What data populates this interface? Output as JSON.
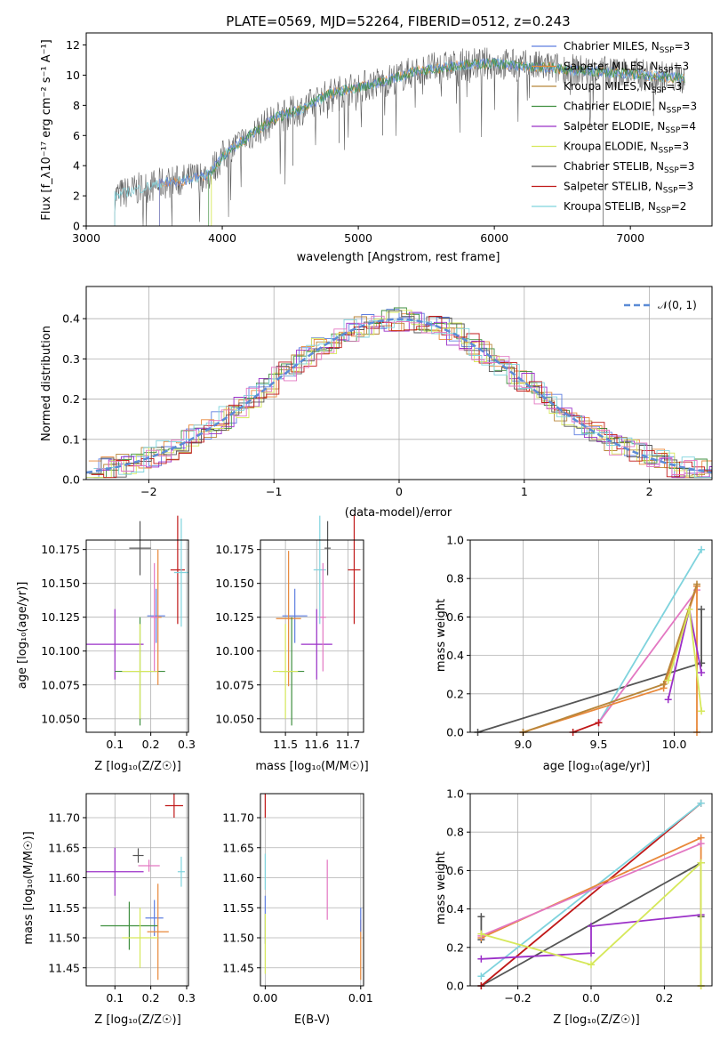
{
  "title": "PLATE=0569, MJD=52264, FIBERID=0512, z=0.243",
  "colors": {
    "chabrier_miles": "#5f7fe0",
    "salpeter_miles": "#e8883a",
    "kroupa_miles": "#b8863a",
    "chabrier_elodie": "#3f8f3f",
    "salpeter_elodie": "#9b30c8",
    "kroupa_elodie": "#d6e85a",
    "chabrier_stelib": "#555555",
    "salpeter_stelib": "#c01818",
    "kroupa_stelib": "#7fd3dd",
    "pink": "#e377c2",
    "gauss": "#5b8bd6",
    "grid": "#b0b0b0"
  },
  "panel_spectrum": {
    "ylabel": "Flux [f_λ10⁻¹⁷ erg cm⁻² s⁻¹ A⁻¹]",
    "xlabel": "wavelength [Angstrom, rest frame]",
    "legend": [
      {
        "label": "Chabrier MILES, N",
        "sub": "SSP",
        "tail": "=3",
        "color_key": "chabrier_miles"
      },
      {
        "label": "Salpeter MILES, N",
        "sub": "SSP",
        "tail": "=3",
        "color_key": "salpeter_miles"
      },
      {
        "label": "Kroupa MILES, N",
        "sub": "SSP",
        "tail": "=3",
        "color_key": "kroupa_miles"
      },
      {
        "label": "Chabrier ELODIE, N",
        "sub": "SSP",
        "tail": "=3",
        "color_key": "chabrier_elodie"
      },
      {
        "label": "Salpeter ELODIE, N",
        "sub": "SSP",
        "tail": "=4",
        "color_key": "salpeter_elodie"
      },
      {
        "label": "Kroupa ELODIE, N",
        "sub": "SSP",
        "tail": "=3",
        "color_key": "kroupa_elodie"
      },
      {
        "label": "Chabrier STELIB, N",
        "sub": "SSP",
        "tail": "=3",
        "color_key": "chabrier_stelib"
      },
      {
        "label": "Salpeter STELIB, N",
        "sub": "SSP",
        "tail": "=3",
        "color_key": "salpeter_stelib"
      },
      {
        "label": "Kroupa STELIB, N",
        "sub": "SSP",
        "tail": "=2",
        "color_key": "kroupa_stelib"
      }
    ]
  },
  "panel_hist": {
    "ylabel": "Normed distribution",
    "xlabel": "(data-model)/error",
    "legend_label": "𝒩(0, 1)"
  },
  "panel_age_Z": {
    "ylabel": "age  [log₁₀(age/yr)]",
    "xlabel": "Z [log₁₀(Z/Z☉)]"
  },
  "panel_age_mass": {
    "xlabel": "mass [log₁₀(M/M☉)]"
  },
  "panel_mw_age": {
    "ylabel": "mass weight",
    "xlabel": "age  [log₁₀(age/yr)]"
  },
  "panel_mass_Z": {
    "ylabel": "mass [log₁₀(M/M☉)]",
    "xlabel": "Z [log₁₀(Z/Z☉)]"
  },
  "panel_mass_ebv": {
    "xlabel": "E(B-V)"
  },
  "panel_mw_Z": {
    "ylabel": "mass weight",
    "xlabel": "Z [log₁₀(Z/Z☉)]"
  },
  "chart_data": [
    {
      "type": "line",
      "name": "spectrum",
      "xlim": [
        3000,
        7600
      ],
      "ylim": [
        0,
        12.8
      ],
      "xticks": [
        3000,
        4000,
        5000,
        6000,
        7000
      ],
      "yticks": [
        0,
        2,
        4,
        6,
        8,
        10,
        12
      ],
      "grid": false,
      "legend_position": "top-right",
      "continuum": [
        [
          3210,
          2.0
        ],
        [
          3400,
          2.5
        ],
        [
          3600,
          2.9
        ],
        [
          3700,
          3.0
        ],
        [
          3800,
          3.2
        ],
        [
          3900,
          3.4
        ],
        [
          4000,
          4.6
        ],
        [
          4200,
          6.0
        ],
        [
          4400,
          7.2
        ],
        [
          4600,
          7.8
        ],
        [
          4800,
          8.8
        ],
        [
          5000,
          9.2
        ],
        [
          5200,
          9.6
        ],
        [
          5400,
          10.2
        ],
        [
          5600,
          10.5
        ],
        [
          5800,
          10.7
        ],
        [
          6000,
          10.8
        ],
        [
          6200,
          10.6
        ],
        [
          6400,
          10.5
        ],
        [
          6600,
          10.3
        ],
        [
          6800,
          10.2
        ],
        [
          7000,
          10.1
        ],
        [
          7200,
          9.9
        ],
        [
          7400,
          9.8
        ]
      ]
    },
    {
      "type": "bar",
      "name": "residual histogram",
      "xlim": [
        -2.5,
        2.5
      ],
      "ylim": [
        0,
        0.48
      ],
      "xticks": [
        -2,
        -1,
        0,
        1,
        2
      ],
      "yticks": [
        0.0,
        0.1,
        0.2,
        0.3,
        0.4
      ],
      "grid": true,
      "legend_position": "top-right",
      "series": [
        {
          "color_key": "gauss",
          "kind": "gaussian",
          "mean": 0,
          "sigma": 1
        }
      ]
    },
    {
      "type": "scatter",
      "name": "age vs Z",
      "xlim": [
        0.02,
        0.305
      ],
      "ylim": [
        10.04,
        10.182
      ],
      "xticks": [
        0.1,
        0.2,
        0.3
      ],
      "yticks": [
        10.05,
        10.075,
        10.1,
        10.125,
        10.15,
        10.175
      ],
      "grid": true,
      "points": [
        {
          "color_key": "chabrier_stelib",
          "x": 0.17,
          "xerr": 0.03,
          "y": 10.176,
          "yerr": 0.02
        },
        {
          "color_key": "salpeter_elodie",
          "x": 0.1,
          "xerr": 0.08,
          "y": 10.105,
          "yerr": 0.026
        },
        {
          "color_key": "chabrier_elodie",
          "x": 0.17,
          "xerr": 0.07,
          "y": 10.085,
          "yerr": 0.04
        },
        {
          "color_key": "kroupa_elodie",
          "x": 0.17,
          "xerr": 0.05,
          "y": 10.085,
          "yerr": 0.035
        },
        {
          "color_key": "chabrier_miles",
          "x": 0.215,
          "xerr": 0.025,
          "y": 10.126,
          "yerr": 0.02
        },
        {
          "color_key": "salpeter_miles",
          "x": 0.22,
          "xerr": 0.01,
          "y": 10.125,
          "yerr": 0.05
        },
        {
          "color_key": "pink",
          "x": 0.21,
          "xerr": 0.01,
          "y": 10.125,
          "yerr": 0.04
        },
        {
          "color_key": "salpeter_stelib",
          "x": 0.275,
          "xerr": 0.02,
          "y": 10.16,
          "yerr": 0.04
        },
        {
          "color_key": "kroupa_stelib",
          "x": 0.285,
          "xerr": 0.02,
          "y": 10.158,
          "yerr": 0.04
        }
      ]
    },
    {
      "type": "scatter",
      "name": "age vs mass",
      "xlim": [
        11.42,
        11.75
      ],
      "ylim": [
        10.04,
        10.182
      ],
      "xticks": [
        11.5,
        11.6,
        11.7
      ],
      "yticks": [
        10.05,
        10.075,
        10.1,
        10.125,
        10.15,
        10.175
      ],
      "grid": true,
      "points": [
        {
          "color_key": "chabrier_stelib",
          "x": 11.635,
          "xerr": 0.01,
          "y": 10.176,
          "yerr": 0.02
        },
        {
          "color_key": "salpeter_stelib",
          "x": 11.72,
          "xerr": 0.02,
          "y": 10.16,
          "yerr": 0.04
        },
        {
          "color_key": "kroupa_stelib",
          "x": 11.61,
          "xerr": 0.02,
          "y": 10.16,
          "yerr": 0.04
        },
        {
          "color_key": "salpeter_elodie",
          "x": 11.6,
          "xerr": 0.05,
          "y": 10.105,
          "yerr": 0.026
        },
        {
          "color_key": "chabrier_miles",
          "x": 11.53,
          "xerr": 0.04,
          "y": 10.126,
          "yerr": 0.02
        },
        {
          "color_key": "salpeter_miles",
          "x": 11.51,
          "xerr": 0.04,
          "y": 10.124,
          "yerr": 0.05
        },
        {
          "color_key": "chabrier_elodie",
          "x": 11.52,
          "xerr": 0.04,
          "y": 10.085,
          "yerr": 0.04
        },
        {
          "color_key": "kroupa_elodie",
          "x": 11.5,
          "xerr": 0.04,
          "y": 10.085,
          "yerr": 0.035
        },
        {
          "color_key": "pink",
          "x": 11.62,
          "xerr": 0.01,
          "y": 10.125,
          "yerr": 0.04
        }
      ]
    },
    {
      "type": "line",
      "name": "mass weight vs age",
      "xlim": [
        8.65,
        10.25
      ],
      "ylim": [
        0,
        1.0
      ],
      "xticks": [
        9.0,
        9.5,
        10.0
      ],
      "yticks": [
        0.0,
        0.2,
        0.4,
        0.6,
        0.8,
        1.0
      ],
      "grid": true,
      "series": [
        {
          "color_key": "chabrier_stelib",
          "x": [
            8.7,
            10.18,
            10.18,
            10.18
          ],
          "y": [
            0.0,
            0.36,
            0.64,
            0.36
          ]
        },
        {
          "color_key": "kroupa_stelib",
          "x": [
            9.5,
            10.18
          ],
          "y": [
            0.05,
            0.95
          ]
        },
        {
          "color_key": "pink",
          "x": [
            9.5,
            10.15
          ],
          "y": [
            0.05,
            0.74
          ]
        },
        {
          "color_key": "salpeter_miles",
          "x": [
            9.0,
            9.93,
            10.15,
            10.15
          ],
          "y": [
            0.0,
            0.23,
            0.76,
            0.0
          ]
        },
        {
          "color_key": "kroupa_miles",
          "x": [
            9.0,
            9.93,
            10.15
          ],
          "y": [
            0.0,
            0.25,
            0.77
          ]
        },
        {
          "color_key": "salpeter_elodie",
          "x": [
            9.96,
            10.1,
            10.18
          ],
          "y": [
            0.17,
            0.64,
            0.31
          ]
        },
        {
          "color_key": "kroupa_elodie",
          "x": [
            9.96,
            10.1,
            10.18
          ],
          "y": [
            0.27,
            0.64,
            0.11
          ]
        },
        {
          "color_key": "salpeter_stelib",
          "x": [
            9.33,
            9.5
          ],
          "y": [
            0.0,
            0.05
          ]
        }
      ]
    },
    {
      "type": "scatter",
      "name": "mass vs Z",
      "xlim": [
        0.02,
        0.305
      ],
      "ylim": [
        11.42,
        11.74
      ],
      "xticks": [
        0.1,
        0.2,
        0.3
      ],
      "yticks": [
        11.45,
        11.5,
        11.55,
        11.6,
        11.65,
        11.7
      ],
      "grid": true,
      "points": [
        {
          "color_key": "salpeter_stelib",
          "x": 0.265,
          "xerr": 0.025,
          "y": 11.72,
          "yerr": 0.02
        },
        {
          "color_key": "chabrier_stelib",
          "x": 0.165,
          "xerr": 0.015,
          "y": 11.637,
          "yerr": 0.012
        },
        {
          "color_key": "pink",
          "x": 0.195,
          "xerr": 0.03,
          "y": 11.62,
          "yerr": 0.01
        },
        {
          "color_key": "kroupa_stelib",
          "x": 0.285,
          "xerr": 0.01,
          "y": 11.61,
          "yerr": 0.025
        },
        {
          "color_key": "salpeter_elodie",
          "x": 0.1,
          "xerr": 0.08,
          "y": 11.61,
          "yerr": 0.04
        },
        {
          "color_key": "chabrier_miles",
          "x": 0.21,
          "xerr": 0.025,
          "y": 11.533,
          "yerr": 0.03
        },
        {
          "color_key": "chabrier_elodie",
          "x": 0.14,
          "xerr": 0.08,
          "y": 11.52,
          "yerr": 0.04
        },
        {
          "color_key": "salpeter_miles",
          "x": 0.22,
          "xerr": 0.03,
          "y": 11.51,
          "yerr": 0.08
        },
        {
          "color_key": "kroupa_elodie",
          "x": 0.17,
          "xerr": 0.05,
          "y": 11.5,
          "yerr": 0.05
        }
      ]
    },
    {
      "type": "scatter",
      "name": "mass vs E(B-V)",
      "xlim": [
        -0.0005,
        0.0103
      ],
      "ylim": [
        11.42,
        11.74
      ],
      "xticks": [
        0.0,
        0.01
      ],
      "yticks": [
        11.45,
        11.5,
        11.55,
        11.6,
        11.65,
        11.7
      ],
      "grid": true,
      "points": [
        {
          "color_key": "salpeter_stelib",
          "x": 0.0,
          "xerr": 0,
          "y": 11.72,
          "yerr": 0.02
        },
        {
          "color_key": "kroupa_stelib",
          "x": 0.0,
          "xerr": 0,
          "y": 11.61,
          "yerr": 0.03
        },
        {
          "color_key": "pink",
          "x": 0.0065,
          "xerr": 0,
          "y": 11.58,
          "yerr": 0.05
        },
        {
          "color_key": "chabrier_miles",
          "x": 0.0,
          "xerr": 0,
          "y": 11.53,
          "yerr": 0.04
        },
        {
          "color_key": "salpeter_miles",
          "x": 0.01,
          "xerr": 0,
          "y": 11.48,
          "yerr": 0.05
        },
        {
          "color_key": "kroupa_elodie",
          "x": 0.0,
          "xerr": 0,
          "y": 11.49,
          "yerr": 0.05
        },
        {
          "color_key": "chabrier_miles",
          "x": 0.01,
          "xerr": 0,
          "y": 11.53,
          "yerr": 0.02
        }
      ]
    },
    {
      "type": "line",
      "name": "mass weight vs Z",
      "xlim": [
        -0.33,
        0.33
      ],
      "ylim": [
        0,
        1.0
      ],
      "xticks": [
        -0.2,
        0.0,
        0.2
      ],
      "yticks": [
        0.0,
        0.2,
        0.4,
        0.6,
        0.8,
        1.0
      ],
      "grid": true,
      "series": [
        {
          "color_key": "chabrier_stelib",
          "x": [
            -0.3,
            0.3,
            0.3,
            0.3
          ],
          "y": [
            0.0,
            0.64,
            0.64,
            0.36
          ]
        },
        {
          "color_key": "chabrier_stelib",
          "x": [
            -0.3,
            -0.3
          ],
          "y": [
            0.24,
            0.36
          ]
        },
        {
          "color_key": "salpeter_stelib",
          "x": [
            -0.3,
            0.3
          ],
          "y": [
            0.0,
            0.95
          ]
        },
        {
          "color_key": "kroupa_stelib",
          "x": [
            -0.3,
            0.3
          ],
          "y": [
            0.05,
            0.95
          ]
        },
        {
          "color_key": "salpeter_miles",
          "x": [
            -0.3,
            0.3,
            0.3
          ],
          "y": [
            0.25,
            0.77,
            0.0
          ]
        },
        {
          "color_key": "pink",
          "x": [
            -0.3,
            0.3
          ],
          "y": [
            0.26,
            0.74
          ]
        },
        {
          "color_key": "salpeter_elodie",
          "x": [
            -0.3,
            0.0,
            0.0,
            0.3
          ],
          "y": [
            0.14,
            0.17,
            0.31,
            0.37
          ]
        },
        {
          "color_key": "kroupa_elodie",
          "x": [
            -0.3,
            0.0,
            0.3,
            0.3
          ],
          "y": [
            0.27,
            0.11,
            0.64,
            0.0
          ]
        }
      ]
    }
  ]
}
